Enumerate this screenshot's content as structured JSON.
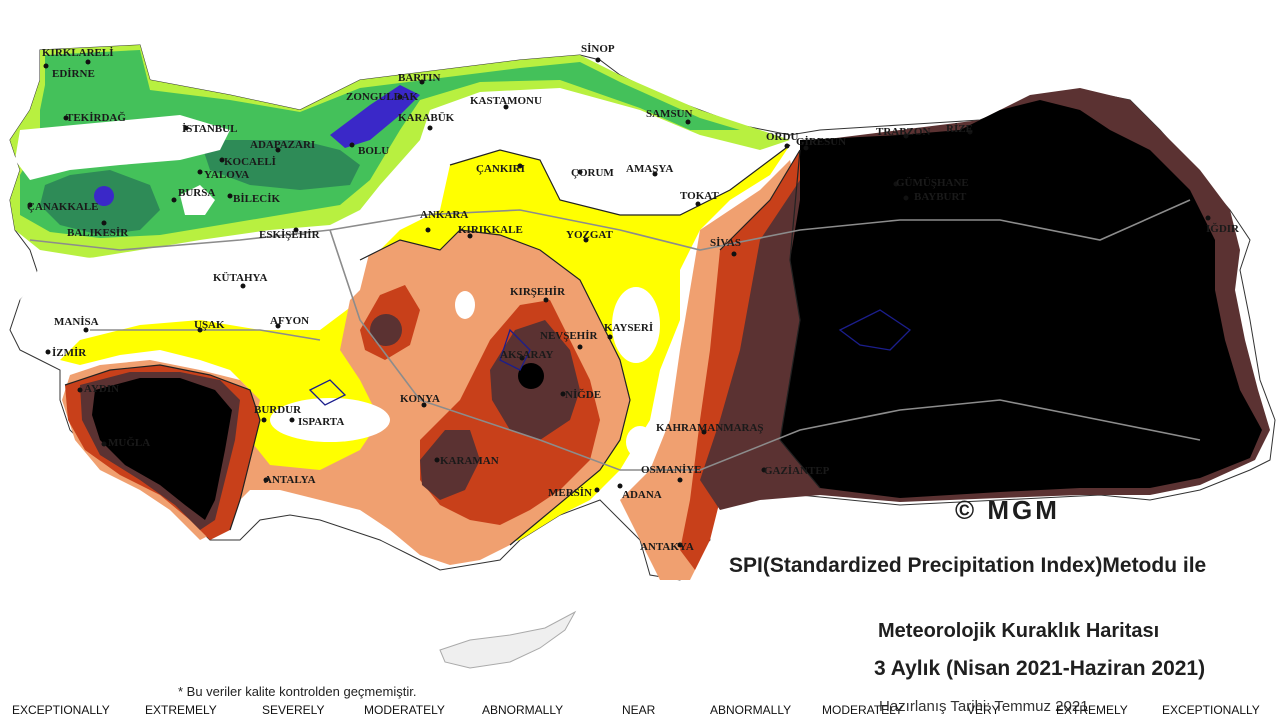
{
  "map": {
    "title_line_1": "SPI(Standardized Precipitation Index)Metodu ile",
    "title_line_2": "Meteorolojik Kuraklık Haritası",
    "title_line_3": "3 Aylık (Nisan 2021-Haziran 2021)",
    "prepared_date": "Hazırlanış Tarihi: Temmuz 2021",
    "footnote": "* Bu veriler kalite kontrolden geçmemiştir.",
    "copyright": "© MGM",
    "colors": {
      "exceptionally_dry": "#000000",
      "extremely_dry": "#5b3232",
      "severely_dry": "#c8401a",
      "moderately_dry": "#f0a070",
      "abnormally_dry": "#ffff00",
      "near_normal": "#ffffff",
      "abnormally_wet": "#b8f040",
      "moderately_wet": "#44c15a",
      "very_wet": "#2e8b57",
      "extremely_wet": "#3a28c8"
    }
  },
  "cities": [
    {
      "name": "KIRKLARELİ"
    },
    {
      "name": "EDİRNE"
    },
    {
      "name": "TEKİRDAĞ"
    },
    {
      "name": "İSTANBUL"
    },
    {
      "name": "ÇANAKKALE"
    },
    {
      "name": "BALIKESİR"
    },
    {
      "name": "BURSA"
    },
    {
      "name": "YALOVA"
    },
    {
      "name": "KOCAELİ"
    },
    {
      "name": "ADAPAZARI"
    },
    {
      "name": "BİLECİK"
    },
    {
      "name": "BOLU"
    },
    {
      "name": "ZONGULDAK"
    },
    {
      "name": "BARTIN"
    },
    {
      "name": "KARABÜK"
    },
    {
      "name": "KASTAMONU"
    },
    {
      "name": "SİNOP"
    },
    {
      "name": "SAMSUN"
    },
    {
      "name": "ORDU"
    },
    {
      "name": "GİRESUN"
    },
    {
      "name": "TRABZON"
    },
    {
      "name": "RİZE"
    },
    {
      "name": "ÇANKIRI"
    },
    {
      "name": "ÇORUM"
    },
    {
      "name": "AMASYA"
    },
    {
      "name": "TOKAT"
    },
    {
      "name": "ANKARA"
    },
    {
      "name": "KIRIKKALE"
    },
    {
      "name": "YOZGAT"
    },
    {
      "name": "SİVAS"
    },
    {
      "name": "ESKİŞEHİR"
    },
    {
      "name": "KÜTAHYA"
    },
    {
      "name": "MANİSA"
    },
    {
      "name": "İZMİR"
    },
    {
      "name": "UŞAK"
    },
    {
      "name": "AFYON"
    },
    {
      "name": "KIRŞEHİR"
    },
    {
      "name": "NEVŞEHİR"
    },
    {
      "name": "KAYSERİ"
    },
    {
      "name": "AKSARAY"
    },
    {
      "name": "NİĞDE"
    },
    {
      "name": "KONYA"
    },
    {
      "name": "BURDUR"
    },
    {
      "name": "ISPARTA"
    },
    {
      "name": "KARAMAN"
    },
    {
      "name": "ANTALYA"
    },
    {
      "name": "MERSİN"
    },
    {
      "name": "ADANA"
    },
    {
      "name": "OSMANİYE"
    },
    {
      "name": "KAHRAMANMARAŞ"
    },
    {
      "name": "ANTAKYA"
    },
    {
      "name": "IĞDIR"
    },
    {
      "name": "GÜMÜŞHANE"
    },
    {
      "name": "BAYBURT"
    },
    {
      "name": "MUĞLA"
    },
    {
      "name": "AYDIN"
    },
    {
      "name": "GAZİANTEP"
    }
  ],
  "legend": [
    {
      "label": "EXCEPTIONALLY"
    },
    {
      "label": "EXTREMELY"
    },
    {
      "label": "SEVERELY"
    },
    {
      "label": "MODERATELY"
    },
    {
      "label": "ABNORMALLY"
    },
    {
      "label": "NEAR"
    },
    {
      "label": "ABNORMALLY"
    },
    {
      "label": "MODERATELY"
    },
    {
      "label": "VERY"
    },
    {
      "label": "EXTREMELY"
    },
    {
      "label": "EXCEPTIONALLY"
    }
  ]
}
